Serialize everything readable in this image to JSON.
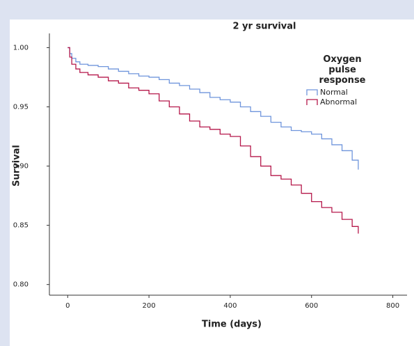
{
  "chart_data": {
    "type": "step",
    "title": "2 yr survival",
    "xlabel": "Time (days)",
    "ylabel": "Survival",
    "legend_title": "Oxygen pulse response",
    "legend": "upper right",
    "grid": false,
    "x": [
      0,
      5,
      10,
      20,
      30,
      50,
      75,
      100,
      125,
      150,
      175,
      200,
      225,
      250,
      275,
      300,
      325,
      350,
      375,
      400,
      425,
      450,
      475,
      500,
      525,
      550,
      575,
      600,
      625,
      650,
      675,
      700,
      715
    ],
    "series": [
      {
        "name": "Normal",
        "color": "#6f95dc",
        "values": [
          1.0,
          0.995,
          0.991,
          0.988,
          0.986,
          0.985,
          0.984,
          0.982,
          0.98,
          0.978,
          0.976,
          0.975,
          0.973,
          0.97,
          0.968,
          0.965,
          0.962,
          0.958,
          0.956,
          0.954,
          0.95,
          0.946,
          0.942,
          0.937,
          0.933,
          0.93,
          0.929,
          0.927,
          0.923,
          0.918,
          0.913,
          0.905,
          0.897
        ]
      },
      {
        "name": "Abnormal",
        "color": "#b5174a",
        "values": [
          1.0,
          0.992,
          0.986,
          0.982,
          0.979,
          0.977,
          0.975,
          0.972,
          0.97,
          0.966,
          0.964,
          0.961,
          0.955,
          0.95,
          0.944,
          0.938,
          0.933,
          0.931,
          0.927,
          0.925,
          0.917,
          0.908,
          0.9,
          0.892,
          0.889,
          0.884,
          0.877,
          0.87,
          0.865,
          0.861,
          0.855,
          0.849,
          0.843
        ]
      }
    ],
    "xlim": [
      -45,
      835
    ],
    "xticks": [
      0,
      200,
      400,
      600,
      800
    ],
    "ylim": [
      0.791,
      1.012
    ],
    "yticks": [
      {
        "value": 0.8,
        "label": "0.80"
      },
      {
        "value": 0.85,
        "label": "0.85"
      },
      {
        "value": 0.9,
        "label": "0.90"
      },
      {
        "value": 0.95,
        "label": "0.95"
      },
      {
        "value": 1.0,
        "label": "1.00"
      }
    ]
  }
}
